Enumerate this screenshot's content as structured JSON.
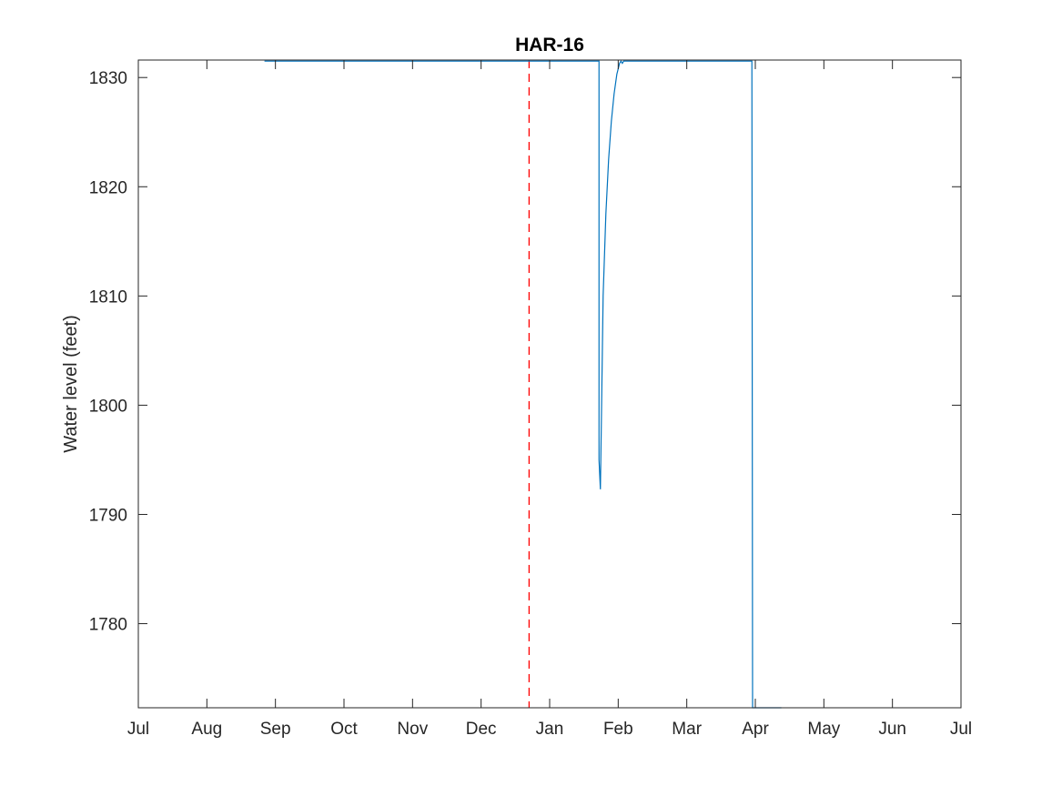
{
  "chart_data": {
    "type": "line",
    "title": "HAR-16",
    "xlabel": "",
    "ylabel": "Water level (feet)",
    "x_ticks": [
      "Jul",
      "Aug",
      "Sep",
      "Oct",
      "Nov",
      "Dec",
      "Jan",
      "Feb",
      "Mar",
      "Apr",
      "May",
      "Jun",
      "Jul"
    ],
    "xlim": [
      0,
      12
    ],
    "y_ticks": [
      1780,
      1790,
      1800,
      1810,
      1820,
      1830
    ],
    "ylim": [
      1772.3,
      1831.6
    ],
    "grid": false,
    "x_units": "months since first Jul tick",
    "series": [
      {
        "color": "#0072BD",
        "x": [
          1.84,
          6.72,
          6.72,
          6.74,
          6.76,
          6.78,
          6.82,
          6.86,
          6.9,
          6.94,
          6.98,
          7.02,
          7.04,
          7.06,
          7.08,
          7.1,
          8.95,
          8.96,
          8.97,
          8.98,
          9.38
        ],
        "values": [
          1831.5,
          1831.5,
          1795.0,
          1792.3,
          1801.0,
          1810.0,
          1817.5,
          1822.5,
          1826.0,
          1828.5,
          1830.3,
          1831.3,
          1831.5,
          1831.3,
          1831.5,
          1831.5,
          1831.5,
          1772.3,
          1772.3,
          1772.3,
          1772.3
        ]
      }
    ],
    "reference_line": {
      "x": 5.7,
      "color": "#FF0000",
      "style": "dashed"
    }
  }
}
